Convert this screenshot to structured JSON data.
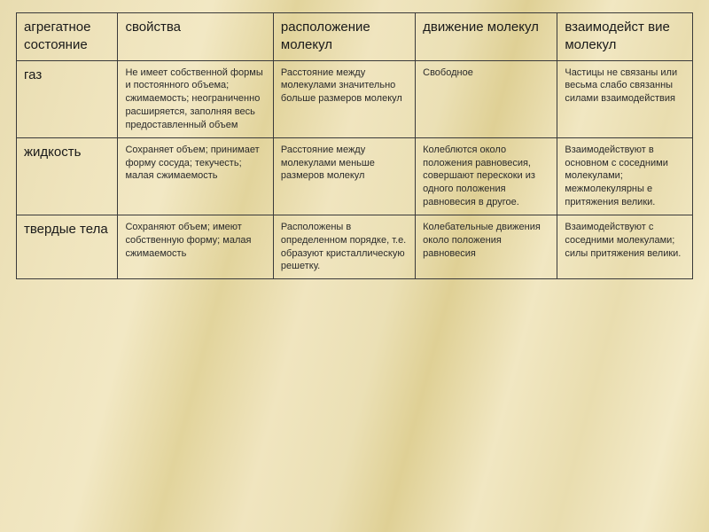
{
  "table": {
    "type": "table",
    "background_gradient": [
      "#e8dcb0",
      "#efe4bd",
      "#f2e8c4",
      "#e2d49c",
      "#f0e5bf",
      "#ebe0b5",
      "#dfd095",
      "#f1e7c2",
      "#e9ddaf",
      "#f3eac8",
      "#e6d9a6"
    ],
    "border_color": "#3a3a3a",
    "header_fontsize": 15,
    "cell_fontsize": 11,
    "text_color": "#1a1a1a",
    "column_widths_pct": [
      15,
      23,
      21,
      21,
      20
    ],
    "columns": [
      "агрегатное состояние",
      "свойства",
      "расположение молекул",
      "движение молекул",
      "взаимодейст вие молекул"
    ],
    "rows": [
      {
        "label": "газ",
        "cells": [
          "Не имеет собственной формы и постоянного объема; сжимаемость; неограниченно расширяется, заполняя весь предоставленный объем",
          "Расстояние между молекулами значительно больше размеров молекул",
          "Свободное",
          "Частицы не связаны или весьма слабо связанны силами взаимодействия"
        ]
      },
      {
        "label": "жидкость",
        "cells": [
          "Сохраняет объем; принимает форму сосуда; текучесть; малая сжимаемость",
          "Расстояние между молекулами меньше размеров молекул",
          "Колеблются около положения равновесия, совершают перескоки из одного положения равновесия в другое.",
          "Взаимодействуют в основном с соседними молекулами; межмолекулярны е притяжения велики."
        ]
      },
      {
        "label": "твердые тела",
        "cells": [
          "Сохраняют объем; имеют собственную форму; малая сжимаемость",
          "Расположены в определенном порядке, т.е. образуют кристаллическую решетку.",
          "Колебательные движения около положения равновесия",
          "Взаимодействуют с соседними молекулами; силы притяжения велики."
        ]
      }
    ]
  }
}
